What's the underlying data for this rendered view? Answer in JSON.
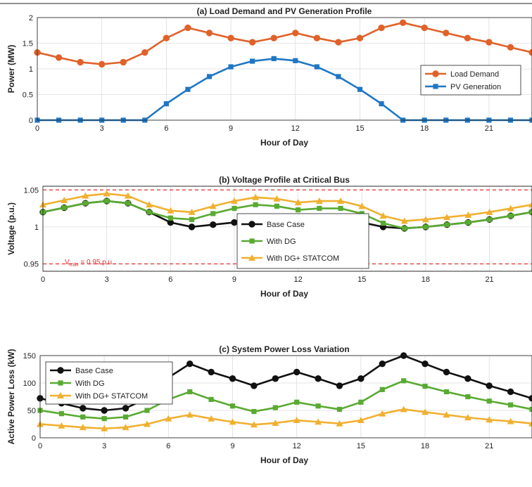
{
  "chart_data": [
    {
      "type": "line",
      "title": "(a) Load Demand and PV Generation Profile",
      "xlabel": "Hour of Day",
      "ylabel": "Power (MW)",
      "xlim": [
        0,
        23
      ],
      "ylim": [
        0,
        2
      ],
      "x_ticks": [
        "0",
        "3",
        "6",
        "9",
        "12",
        "15",
        "18",
        "21"
      ],
      "y_ticks": [
        "0",
        "0.5",
        "1",
        "1.5",
        "2"
      ],
      "grid": true,
      "legend_position": "lower-right",
      "x": [
        0,
        1,
        2,
        3,
        4,
        5,
        6,
        7,
        8,
        9,
        10,
        11,
        12,
        13,
        14,
        15,
        16,
        17,
        18,
        19,
        20,
        21,
        22,
        23
      ],
      "series": [
        {
          "name": "Load Demand",
          "color": "#e0622a",
          "marker": "circle",
          "values": [
            1.32,
            1.22,
            1.13,
            1.09,
            1.13,
            1.32,
            1.6,
            1.8,
            1.7,
            1.6,
            1.52,
            1.6,
            1.7,
            1.6,
            1.52,
            1.6,
            1.8,
            1.9,
            1.8,
            1.7,
            1.6,
            1.52,
            1.42,
            1.32
          ]
        },
        {
          "name": "PV Generation",
          "color": "#1f77c4",
          "marker": "square",
          "values": [
            0,
            0,
            0,
            0,
            0,
            0,
            0.32,
            0.6,
            0.85,
            1.04,
            1.15,
            1.2,
            1.16,
            1.04,
            0.85,
            0.6,
            0.32,
            0,
            0,
            0,
            0,
            0,
            0,
            0
          ]
        }
      ]
    },
    {
      "type": "line",
      "title": "(b) Voltage Profile at Critical Bus",
      "xlabel": "Hour of Day",
      "ylabel": "Voltage (p.u.)",
      "xlim": [
        0,
        23
      ],
      "ylim": [
        0.94,
        1.055
      ],
      "x_ticks": [
        "0",
        "3",
        "6",
        "9",
        "12",
        "15",
        "18",
        "21"
      ],
      "y_ticks": [
        "0.95",
        "1",
        "1.05"
      ],
      "grid": true,
      "legend_position": "lower-center",
      "reference_lines": [
        {
          "value": 1.05,
          "color": "#e03030"
        },
        {
          "value": 0.95,
          "color": "#e03030"
        }
      ],
      "annotation": {
        "main": "V",
        "sub": "min",
        "rest": " = 0.95 p.u."
      },
      "x": [
        0,
        1,
        2,
        3,
        4,
        5,
        6,
        7,
        8,
        9,
        10,
        11,
        12,
        13,
        14,
        15,
        16,
        17,
        18,
        19,
        20,
        21,
        22,
        23
      ],
      "series": [
        {
          "name": "Base Case",
          "color": "#111111",
          "marker": "circle",
          "values": [
            1.02,
            1.026,
            1.032,
            1.035,
            1.032,
            1.02,
            1.006,
            1.0,
            1.003,
            1.006,
            1.01,
            1.006,
            1.003,
            1.006,
            1.01,
            1.006,
            1.0,
            0.998,
            1.0,
            1.003,
            1.006,
            1.01,
            1.015,
            1.02
          ]
        },
        {
          "name": "With DG",
          "color": "#5aaa32",
          "marker": "square",
          "values": [
            1.02,
            1.026,
            1.032,
            1.035,
            1.032,
            1.02,
            1.012,
            1.01,
            1.018,
            1.025,
            1.03,
            1.028,
            1.023,
            1.025,
            1.025,
            1.018,
            1.005,
            0.998,
            1.0,
            1.003,
            1.006,
            1.01,
            1.015,
            1.02
          ]
        },
        {
          "name": "With DG+  STATCOM",
          "color": "#f0b030",
          "marker": "triangle",
          "values": [
            1.03,
            1.036,
            1.042,
            1.045,
            1.042,
            1.03,
            1.022,
            1.02,
            1.028,
            1.035,
            1.04,
            1.038,
            1.033,
            1.035,
            1.035,
            1.028,
            1.015,
            1.008,
            1.01,
            1.013,
            1.016,
            1.02,
            1.025,
            1.03
          ]
        }
      ]
    },
    {
      "type": "line",
      "title": "(c) System Power Loss Variation",
      "xlabel": "Hour of Day",
      "ylabel": "Active Power Loss (kW)",
      "xlim": [
        0,
        23
      ],
      "ylim": [
        0,
        150
      ],
      "x_ticks": [
        "0",
        "3",
        "6",
        "9",
        "12",
        "15",
        "18",
        "21"
      ],
      "y_ticks": [
        "0",
        "50",
        "100",
        "150"
      ],
      "grid": true,
      "legend_position": "top-left",
      "x": [
        0,
        1,
        2,
        3,
        4,
        5,
        6,
        7,
        8,
        9,
        10,
        11,
        12,
        13,
        14,
        15,
        16,
        17,
        18,
        19,
        20,
        21,
        22,
        23
      ],
      "series": [
        {
          "name": "Base Case",
          "color": "#111111",
          "marker": "circle",
          "values": [
            72,
            63,
            54,
            50,
            54,
            72,
            110,
            135,
            120,
            108,
            95,
            108,
            120,
            108,
            95,
            108,
            135,
            150,
            135,
            120,
            108,
            95,
            84,
            72
          ]
        },
        {
          "name": "With DG",
          "color": "#5aaa32",
          "marker": "square",
          "values": [
            50,
            44,
            38,
            35,
            38,
            50,
            70,
            84,
            70,
            58,
            48,
            55,
            65,
            58,
            52,
            65,
            88,
            104,
            94,
            84,
            75,
            67,
            60,
            52
          ]
        },
        {
          "name": "With DG+  STATCOM",
          "color": "#f0b030",
          "marker": "triangle",
          "values": [
            25,
            22,
            19,
            17,
            19,
            25,
            35,
            42,
            35,
            29,
            24,
            27,
            32,
            29,
            26,
            32,
            44,
            52,
            47,
            42,
            37,
            33,
            30,
            26
          ]
        }
      ]
    }
  ]
}
